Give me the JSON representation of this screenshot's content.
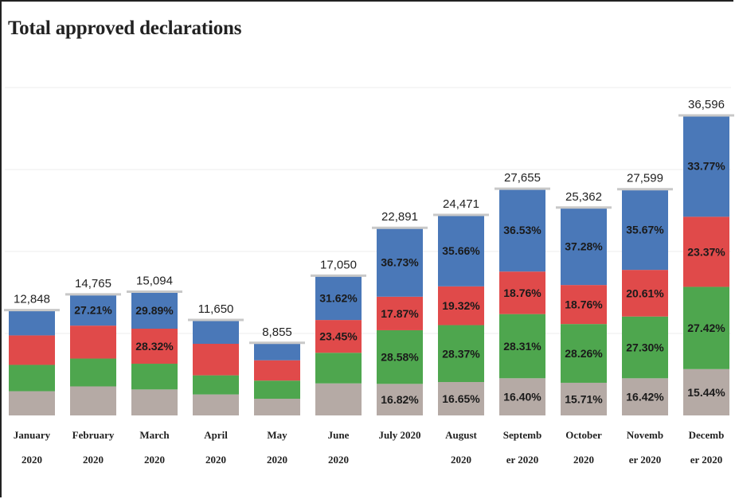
{
  "chart_data": {
    "type": "bar",
    "stacked": true,
    "title": "Total approved declarations",
    "categories": [
      [
        "January",
        "2020"
      ],
      [
        "February",
        "2020"
      ],
      [
        "March",
        "2020"
      ],
      [
        "April",
        "2020"
      ],
      [
        "May",
        "2020"
      ],
      [
        "June",
        "2020"
      ],
      [
        "July 2020",
        ""
      ],
      [
        "August",
        "2020"
      ],
      [
        "Septemb",
        "er 2020"
      ],
      [
        "October",
        "2020"
      ],
      [
        "Novemb",
        "er 2020"
      ],
      [
        "Decemb",
        "er 2020"
      ]
    ],
    "totals": [
      "12,848",
      "14,765",
      "15,094",
      "11,650",
      "8,855",
      "17,050",
      "22,891",
      "24,471",
      "27,655",
      "25,362",
      "27,599",
      "36,596"
    ],
    "total_values": [
      12848,
      14765,
      15094,
      11650,
      8855,
      17050,
      22891,
      24471,
      27655,
      25362,
      27599,
      36596
    ],
    "colors": [
      "#b5aaa5",
      "#4ea64e",
      "#e04a4a",
      "#4a78b8"
    ],
    "segment_shares": [
      [
        0.23,
        0.25,
        0.28,
        0.24
      ],
      [
        0.24,
        0.23,
        0.2721,
        0.2579
      ],
      [
        0.21,
        0.2079,
        0.2832,
        0.2989
      ],
      [
        0.22,
        0.2,
        0.33,
        0.25
      ],
      [
        0.23,
        0.25,
        0.28,
        0.24
      ],
      [
        0.2293,
        0.219,
        0.2345,
        0.3162
      ],
      [
        0.1682,
        0.2858,
        0.1787,
        0.3673
      ],
      [
        0.1665,
        0.2837,
        0.1932,
        0.3566
      ],
      [
        0.164,
        0.2831,
        0.1876,
        0.3653
      ],
      [
        0.1571,
        0.2826,
        0.1876,
        0.3727
      ],
      [
        0.1642,
        0.273,
        0.2061,
        0.3567
      ],
      [
        0.1544,
        0.2742,
        0.2337,
        0.3377
      ]
    ],
    "pct_labels": [
      [
        "",
        "",
        "",
        ""
      ],
      [
        "",
        "",
        "",
        "27.21%"
      ],
      [
        "",
        "",
        "28.32%",
        "29.89%"
      ],
      [
        "",
        "",
        "",
        ""
      ],
      [
        "",
        "",
        "",
        ""
      ],
      [
        "",
        "",
        "23.45%",
        "31.62%"
      ],
      [
        "16.82%",
        "28.58%",
        "17.87%",
        "36.73%"
      ],
      [
        "16.65%",
        "28.37%",
        "19.32%",
        "35.66%"
      ],
      [
        "16.40%",
        "28.31%",
        "18.76%",
        "36.53%"
      ],
      [
        "15.71%",
        "28.26%",
        "18.76%",
        "37.28%"
      ],
      [
        "16.42%",
        "27.30%",
        "20.61%",
        "35.67%"
      ],
      [
        "15.44%",
        "27.42%",
        "23.37%",
        "33.77%"
      ]
    ],
    "ylim": [
      0,
      40000
    ],
    "grid": true
  }
}
